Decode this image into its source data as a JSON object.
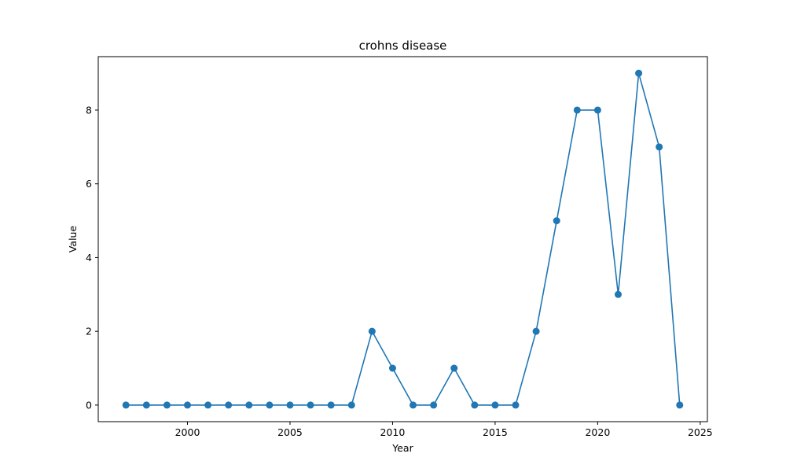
{
  "chart_data": {
    "type": "line",
    "title": "crohns disease",
    "xlabel": "Year",
    "ylabel": "Value",
    "xlim": [
      1995.65,
      2025.35
    ],
    "ylim": [
      -0.45,
      9.45
    ],
    "xticks": [
      2000,
      2005,
      2010,
      2015,
      2020,
      2025
    ],
    "yticks": [
      0,
      2,
      4,
      6,
      8
    ],
    "grid": false,
    "color": "#1f77b4",
    "series": [
      {
        "x": [
          1997,
          1998,
          1999,
          2000,
          2001,
          2002,
          2003,
          2004,
          2005,
          2006,
          2007,
          2008,
          2009,
          2010,
          2011,
          2012,
          2013,
          2014,
          2015,
          2016,
          2017,
          2018,
          2019,
          2020,
          2021,
          2022,
          2023,
          2024
        ],
        "values": [
          0,
          0,
          0,
          0,
          0,
          0,
          0,
          0,
          0,
          0,
          0,
          0,
          2,
          1,
          0,
          0,
          1,
          0,
          0,
          0,
          2,
          5,
          8,
          8,
          3,
          9,
          7,
          0
        ]
      }
    ]
  }
}
